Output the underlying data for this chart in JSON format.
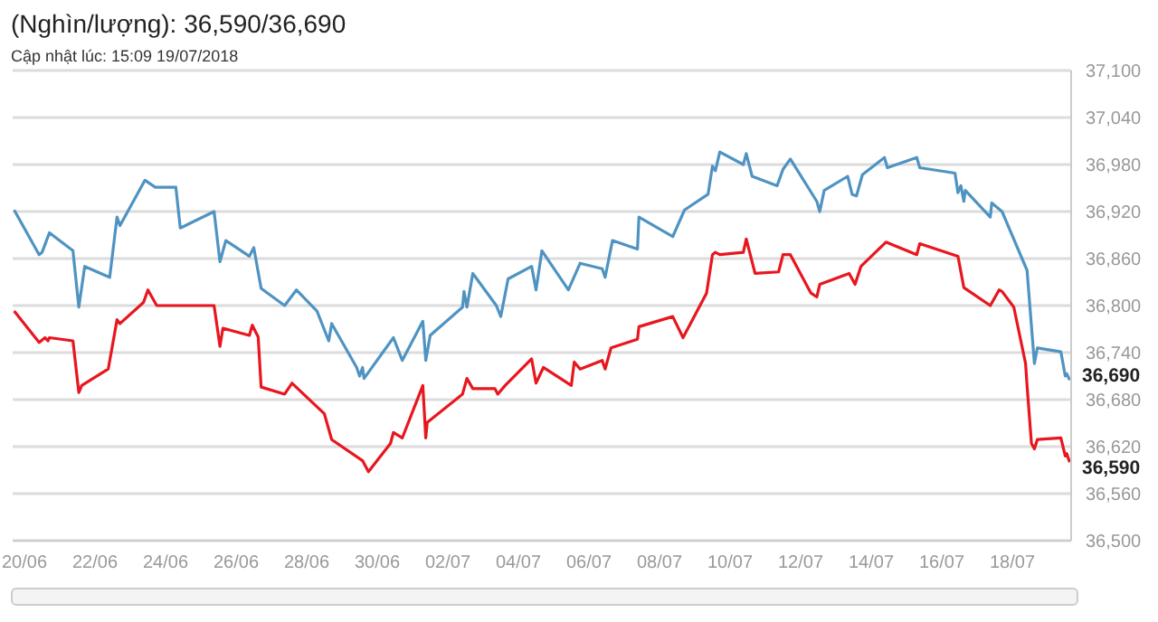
{
  "chart_data": {
    "type": "line",
    "title": "(Nghìn/lượng): 36,590/36,690",
    "subtitle": "Cập nhật lúc: 15:09 19/07/2018",
    "xlim": [
      "2018-06-19T16:00",
      "2018-07-19T16:00"
    ],
    "xticks": [
      {
        "value": "2018-06-20T00:00",
        "label": "20/06"
      },
      {
        "value": "2018-06-22T00:00",
        "label": "22/06"
      },
      {
        "value": "2018-06-24T00:00",
        "label": "24/06"
      },
      {
        "value": "2018-06-26T00:00",
        "label": "26/06"
      },
      {
        "value": "2018-06-28T00:00",
        "label": "28/06"
      },
      {
        "value": "2018-06-30T00:00",
        "label": "30/06"
      },
      {
        "value": "2018-07-02T00:00",
        "label": "02/07"
      },
      {
        "value": "2018-07-04T00:00",
        "label": "04/07"
      },
      {
        "value": "2018-07-06T00:00",
        "label": "06/07"
      },
      {
        "value": "2018-07-08T00:00",
        "label": "08/07"
      },
      {
        "value": "2018-07-10T00:00",
        "label": "10/07"
      },
      {
        "value": "2018-07-12T00:00",
        "label": "12/07"
      },
      {
        "value": "2018-07-14T00:00",
        "label": "14/07"
      },
      {
        "value": "2018-07-16T00:00",
        "label": "16/07"
      },
      {
        "value": "2018-07-18T00:00",
        "label": "18/07"
      }
    ],
    "ylim": [
      36500,
      37100
    ],
    "yticks": [
      {
        "value": 36500,
        "label": "36,500"
      },
      {
        "value": 36560,
        "label": "36,560"
      },
      {
        "value": 36620,
        "label": "36,620"
      },
      {
        "value": 36680,
        "label": "36,680"
      },
      {
        "value": 36740,
        "label": "36,740"
      },
      {
        "value": 36800,
        "label": "36,800"
      },
      {
        "value": 36860,
        "label": "36,860"
      },
      {
        "value": 36920,
        "label": "36,920"
      },
      {
        "value": 36980,
        "label": "36,980"
      },
      {
        "value": 37040,
        "label": "37,040"
      },
      {
        "value": 37100,
        "label": "37,100"
      }
    ],
    "grid": "y",
    "legend": false,
    "marker": "none",
    "line_style": "solid",
    "annotations": [
      "36,690",
      "36,590"
    ],
    "series": [
      {
        "color": "#4f93c2",
        "x": [
          "2018-06-19T17:00",
          "2018-06-20T10:00",
          "2018-06-20T12:00",
          "2018-06-20T17:00",
          "2018-06-21T09:00",
          "2018-06-21T13:00",
          "2018-06-21T17:00",
          "2018-06-22T10:00",
          "2018-06-22T15:00",
          "2018-06-22T17:00",
          "2018-06-23T10:00",
          "2018-06-23T17:00",
          "2018-06-24T07:00",
          "2018-06-24T10:00",
          "2018-06-25T09:00",
          "2018-06-25T13:00",
          "2018-06-25T17:00",
          "2018-06-26T09:00",
          "2018-06-26T12:00",
          "2018-06-26T17:00",
          "2018-06-27T09:00",
          "2018-06-27T17:00",
          "2018-06-28T07:00",
          "2018-06-28T15:00",
          "2018-06-28T17:00",
          "2018-06-29T10:00",
          "2018-06-29T12:00",
          "2018-06-29T14:00",
          "2018-06-29T15:00",
          "2018-06-30T11:00",
          "2018-06-30T17:00",
          "2018-07-01T07:00",
          "2018-07-01T09:00",
          "2018-07-01T12:00",
          "2018-07-02T10:00",
          "2018-07-02T11:00",
          "2018-07-02T13:00",
          "2018-07-02T17:00",
          "2018-07-03T09:00",
          "2018-07-03T12:00",
          "2018-07-03T17:00",
          "2018-07-04T09:00",
          "2018-07-04T12:00",
          "2018-07-04T16:00",
          "2018-07-05T10:00",
          "2018-07-05T18:00",
          "2018-07-06T09:00",
          "2018-07-06T11:00",
          "2018-07-06T16:00",
          "2018-07-07T09:00",
          "2018-07-07T10:00",
          "2018-07-08T09:00",
          "2018-07-08T17:00",
          "2018-07-09T09:00",
          "2018-07-09T12:00",
          "2018-07-09T14:00",
          "2018-07-09T17:00",
          "2018-07-10T09:00",
          "2018-07-10T11:00",
          "2018-07-10T15:00",
          "2018-07-11T08:00",
          "2018-07-11T12:00",
          "2018-07-11T17:00",
          "2018-07-12T11:00",
          "2018-07-12T13:00",
          "2018-07-12T16:00",
          "2018-07-13T08:00",
          "2018-07-13T11:00",
          "2018-07-13T14:00",
          "2018-07-13T18:00",
          "2018-07-14T09:00",
          "2018-07-14T11:00",
          "2018-07-15T07:00",
          "2018-07-15T09:00",
          "2018-07-16T09:00",
          "2018-07-16T11:00",
          "2018-07-16T13:00",
          "2018-07-16T15:00",
          "2018-07-16T16:00",
          "2018-07-17T09:00",
          "2018-07-17T10:00",
          "2018-07-17T17:00",
          "2018-07-18T10:00",
          "2018-07-18T15:00",
          "2018-07-18T17:00",
          "2018-07-19T09:00",
          "2018-07-19T12:00",
          "2018-07-19T13:00",
          "2018-07-19T15:00"
        ],
        "values": [
          36922,
          36865,
          36868,
          36893,
          36870,
          36798,
          36850,
          36836,
          36913,
          36902,
          36960,
          36951,
          36951,
          36899,
          36920,
          36856,
          36883,
          36863,
          36874,
          36822,
          36800,
          36820,
          36793,
          36755,
          36777,
          36721,
          36710,
          36721,
          36707,
          36759,
          36730,
          36780,
          36730,
          36762,
          36798,
          36818,
          36798,
          36841,
          36800,
          36786,
          36834,
          36850,
          36820,
          36870,
          36820,
          36854,
          36847,
          36836,
          36883,
          36872,
          36913,
          36888,
          36922,
          36942,
          36978,
          36972,
          36996,
          36980,
          36994,
          36965,
          36953,
          36974,
          36987,
          36933,
          36920,
          36947,
          36965,
          36942,
          36940,
          36967,
          36989,
          36976,
          36989,
          36976,
          36969,
          36944,
          36953,
          36933,
          36947,
          36913,
          36931,
          36920,
          36845,
          36726,
          36746,
          36741,
          36710,
          36713,
          36705
        ]
      },
      {
        "color": "#e8161e",
        "x": [
          "2018-06-19T17:00",
          "2018-06-20T10:00",
          "2018-06-20T14:00",
          "2018-06-20T16:00",
          "2018-06-20T17:00",
          "2018-06-21T09:00",
          "2018-06-21T13:00",
          "2018-06-21T15:00",
          "2018-06-22T09:00",
          "2018-06-22T15:00",
          "2018-06-22T17:00",
          "2018-06-23T09:00",
          "2018-06-23T12:00",
          "2018-06-23T18:00",
          "2018-06-25T09:00",
          "2018-06-25T13:00",
          "2018-06-25T15:00",
          "2018-06-26T09:00",
          "2018-06-26T11:00",
          "2018-06-26T15:00",
          "2018-06-26T17:00",
          "2018-06-27T09:00",
          "2018-06-27T14:00",
          "2018-06-28T12:00",
          "2018-06-28T17:00",
          "2018-06-29T14:00",
          "2018-06-29T18:00",
          "2018-06-30T09:00",
          "2018-06-30T11:00",
          "2018-06-30T17:00",
          "2018-07-01T07:00",
          "2018-07-01T09:00",
          "2018-07-01T10:00",
          "2018-07-02T10:00",
          "2018-07-02T13:00",
          "2018-07-02T17:00",
          "2018-07-03T08:00",
          "2018-07-03T10:00",
          "2018-07-03T15:00",
          "2018-07-04T09:00",
          "2018-07-04T12:00",
          "2018-07-04T17:00",
          "2018-07-05T12:00",
          "2018-07-05T14:00",
          "2018-07-05T18:00",
          "2018-07-06T09:00",
          "2018-07-06T11:00",
          "2018-07-06T15:00",
          "2018-07-07T09:00",
          "2018-07-07T10:00",
          "2018-07-08T09:00",
          "2018-07-08T16:00",
          "2018-07-09T08:00",
          "2018-07-09T12:00",
          "2018-07-09T14:00",
          "2018-07-09T17:00",
          "2018-07-10T09:00",
          "2018-07-10T11:00",
          "2018-07-10T17:00",
          "2018-07-11T09:00",
          "2018-07-11T12:00",
          "2018-07-11T17:00",
          "2018-07-12T07:00",
          "2018-07-12T11:00",
          "2018-07-12T13:00",
          "2018-07-13T09:00",
          "2018-07-13T13:00",
          "2018-07-13T17:00",
          "2018-07-14T10:00",
          "2018-07-15T07:00",
          "2018-07-15T09:00",
          "2018-07-16T11:00",
          "2018-07-16T15:00",
          "2018-07-17T09:00",
          "2018-07-17T15:00",
          "2018-07-17T17:00",
          "2018-07-18T01:00",
          "2018-07-18T09:00",
          "2018-07-18T10:00",
          "2018-07-18T13:00",
          "2018-07-18T15:00",
          "2018-07-18T17:00",
          "2018-07-19T09:00",
          "2018-07-19T12:00",
          "2018-07-19T13:00",
          "2018-07-19T15:00"
        ],
        "values": [
          36793,
          36753,
          36759,
          36755,
          36759,
          36755,
          36689,
          36698,
          36719,
          36782,
          36777,
          36804,
          36820,
          36800,
          36800,
          36748,
          36771,
          36762,
          36775,
          36760,
          36696,
          36687,
          36701,
          36662,
          36629,
          36602,
          36588,
          36624,
          36638,
          36631,
          36698,
          36631,
          36651,
          36687,
          36707,
          36694,
          36694,
          36687,
          36698,
          36732,
          36701,
          36721,
          36698,
          36728,
          36719,
          36730,
          36719,
          36746,
          36757,
          36773,
          36786,
          36759,
          36816,
          36865,
          36868,
          36865,
          36868,
          36885,
          36841,
          36843,
          36865,
          36865,
          36816,
          36811,
          36827,
          36841,
          36827,
          36850,
          36881,
          36865,
          36879,
          36863,
          36823,
          36800,
          36820,
          36818,
          36798,
          36726,
          36698,
          36624,
          36617,
          36629,
          36631,
          36608,
          36611,
          36600
        ]
      }
    ]
  }
}
